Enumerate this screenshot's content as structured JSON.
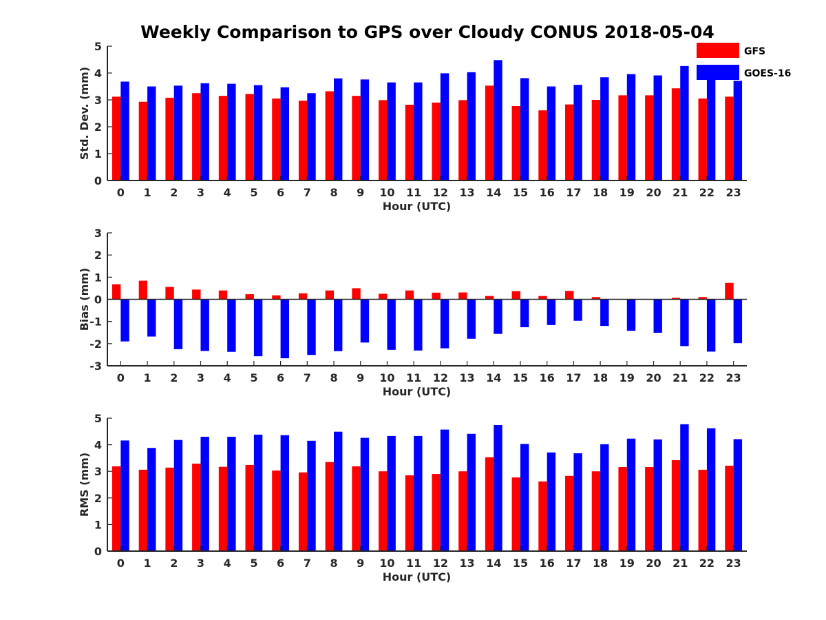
{
  "figure": {
    "title": "Weekly Comparison to GPS over Cloudy CONUS 2018-05-04"
  },
  "legend": {
    "placement": "top-right",
    "items": [
      {
        "label": "GFS",
        "color": "#ff0000"
      },
      {
        "label": "GOES-16",
        "color": "#0000ff"
      }
    ]
  },
  "chart_data": [
    {
      "type": "bar",
      "xlabel": "Hour (UTC)",
      "ylabel": "Std. Dev. (mm)",
      "ylim": [
        0,
        5
      ],
      "yticks": [
        0,
        1,
        2,
        3,
        4,
        5
      ],
      "categories": [
        "0",
        "1",
        "2",
        "3",
        "4",
        "5",
        "6",
        "7",
        "8",
        "9",
        "10",
        "11",
        "12",
        "13",
        "14",
        "15",
        "16",
        "17",
        "18",
        "19",
        "20",
        "21",
        "22",
        "23"
      ],
      "series": [
        {
          "name": "GFS",
          "color": "#ff0000",
          "values": [
            3.12,
            2.93,
            3.08,
            3.25,
            3.15,
            3.22,
            3.05,
            2.97,
            3.32,
            3.15,
            2.99,
            2.82,
            2.9,
            2.99,
            3.53,
            2.77,
            2.61,
            2.83,
            3.0,
            3.17,
            3.17,
            3.43,
            3.05,
            3.12
          ]
        },
        {
          "name": "GOES-16",
          "color": "#0000ff",
          "values": [
            3.68,
            3.5,
            3.53,
            3.62,
            3.6,
            3.55,
            3.47,
            3.25,
            3.8,
            3.76,
            3.65,
            3.65,
            3.99,
            4.03,
            4.48,
            3.81,
            3.5,
            3.56,
            3.84,
            3.96,
            3.91,
            4.26,
            3.95,
            3.71
          ]
        }
      ]
    },
    {
      "type": "bar",
      "xlabel": "Hour (UTC)",
      "ylabel": "Bias (mm)",
      "ylim": [
        -3,
        3
      ],
      "yticks": [
        -3,
        -2,
        -1,
        0,
        1,
        2,
        3
      ],
      "categories": [
        "0",
        "1",
        "2",
        "3",
        "4",
        "5",
        "6",
        "7",
        "8",
        "9",
        "10",
        "11",
        "12",
        "13",
        "14",
        "15",
        "16",
        "17",
        "18",
        "19",
        "20",
        "21",
        "22",
        "23"
      ],
      "series": [
        {
          "name": "GFS",
          "color": "#ff0000",
          "values": [
            0.68,
            0.84,
            0.56,
            0.44,
            0.4,
            0.23,
            0.18,
            0.27,
            0.4,
            0.5,
            0.25,
            0.4,
            0.3,
            0.31,
            0.15,
            0.37,
            0.15,
            0.38,
            0.1,
            0.0,
            0.0,
            0.07,
            0.1,
            0.74
          ]
        },
        {
          "name": "GOES-16",
          "color": "#0000ff",
          "values": [
            -1.9,
            -1.68,
            -2.25,
            -2.33,
            -2.37,
            -2.57,
            -2.66,
            -2.51,
            -2.34,
            -1.95,
            -2.28,
            -2.31,
            -2.21,
            -1.78,
            -1.56,
            -1.26,
            -1.16,
            -0.97,
            -1.2,
            -1.42,
            -1.51,
            -2.11,
            -2.36,
            -1.98
          ]
        }
      ]
    },
    {
      "type": "bar",
      "xlabel": "Hour (UTC)",
      "ylabel": "RMS (mm)",
      "ylim": [
        0,
        5
      ],
      "yticks": [
        0,
        1,
        2,
        3,
        4,
        5
      ],
      "categories": [
        "0",
        "1",
        "2",
        "3",
        "4",
        "5",
        "6",
        "7",
        "8",
        "9",
        "10",
        "11",
        "12",
        "13",
        "14",
        "15",
        "16",
        "17",
        "18",
        "19",
        "20",
        "21",
        "22",
        "23"
      ],
      "series": [
        {
          "name": "GFS",
          "color": "#ff0000",
          "values": [
            3.19,
            3.06,
            3.14,
            3.29,
            3.17,
            3.24,
            3.03,
            2.96,
            3.35,
            3.19,
            3.0,
            2.85,
            2.9,
            3.0,
            3.53,
            2.77,
            2.62,
            2.83,
            3.0,
            3.16,
            3.16,
            3.42,
            3.06,
            3.21
          ]
        },
        {
          "name": "GOES-16",
          "color": "#0000ff",
          "values": [
            4.16,
            3.88,
            4.18,
            4.3,
            4.3,
            4.38,
            4.36,
            4.15,
            4.49,
            4.26,
            4.33,
            4.33,
            4.57,
            4.41,
            4.74,
            4.03,
            3.71,
            3.68,
            4.02,
            4.23,
            4.2,
            4.77,
            4.62,
            4.21
          ]
        }
      ]
    }
  ]
}
